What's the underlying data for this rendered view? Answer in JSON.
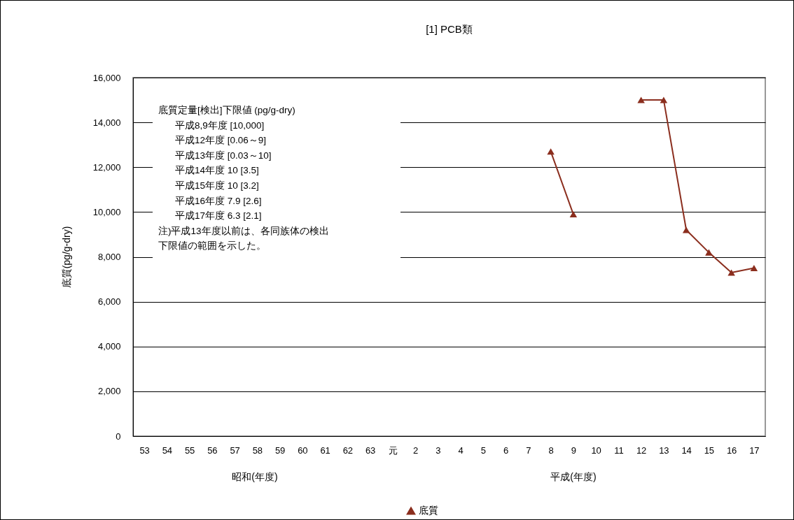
{
  "chart_data": {
    "type": "line",
    "title": "[1] PCB類",
    "ylabel": "底質(pg/g-dry)",
    "categories": [
      "53",
      "54",
      "55",
      "56",
      "57",
      "58",
      "59",
      "60",
      "61",
      "62",
      "63",
      "元",
      "2",
      "3",
      "4",
      "5",
      "6",
      "7",
      "8",
      "9",
      "10",
      "11",
      "12",
      "13",
      "14",
      "15",
      "16",
      "17"
    ],
    "series": [
      {
        "name": "底質",
        "color": "#8b2e1e",
        "values": [
          null,
          null,
          null,
          null,
          null,
          null,
          null,
          null,
          null,
          null,
          null,
          null,
          null,
          null,
          null,
          null,
          null,
          null,
          12700,
          9900,
          null,
          null,
          15000,
          15000,
          9200,
          8200,
          7300,
          7500
        ]
      }
    ],
    "ylim": [
      0,
      16000
    ],
    "yticks": [
      {
        "value": 0,
        "label": "0"
      },
      {
        "value": 2000,
        "label": "2,000"
      },
      {
        "value": 4000,
        "label": "4,000"
      },
      {
        "value": 6000,
        "label": "6,000"
      },
      {
        "value": 8000,
        "label": "8,000"
      },
      {
        "value": 10000,
        "label": "10,000"
      },
      {
        "value": 12000,
        "label": "12,000"
      },
      {
        "value": 14000,
        "label": "14,000"
      },
      {
        "value": 16000,
        "label": "16,000"
      }
    ],
    "grid": "y",
    "legend": "bottom",
    "marker": "triangle",
    "line_style": "solid",
    "annotations": [
      "昭和(年度)",
      "平成(年度)",
      "底質定量[検出]下限値 (pg/g-dry)",
      "    平成8,9年度 [10,000]",
      "    平成12年度 [0.06～9]",
      "    平成13年度 [0.03～10]",
      "    平成14年度 10 [3.5]",
      "    平成15年度 10 [3.2]",
      "    平成16年度 7.9 [2.6]",
      "    平成17年度 6.3 [2.1]",
      "注)平成13年度以前は、各同族体の検出下限値の範囲を示した。"
    ]
  }
}
